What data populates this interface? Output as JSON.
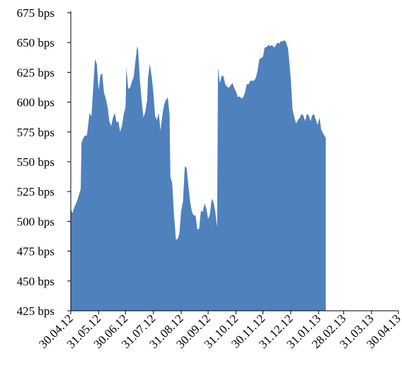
{
  "chart_data": {
    "type": "area",
    "color": "#4F81BD",
    "ylim": [
      425,
      675
    ],
    "yticks": [
      "425 bps",
      "450 bps",
      "475 bps",
      "500 bps",
      "525 bps",
      "550 bps",
      "575 bps",
      "600 bps",
      "625 bps",
      "650 bps",
      "675 bps"
    ],
    "xlim": [
      "2012-04-30",
      "2013-04-30"
    ],
    "xticks": [
      "30.04.12",
      "31.05.12",
      "30.06.12",
      "31.07.12",
      "31.08.12",
      "30.09.12",
      "31.10.12",
      "30.11.12",
      "31.12.12",
      "31.01.13",
      "28.02.13",
      "31.03.13",
      "30.04.13"
    ],
    "xtick_dates": [
      "2012-04-30",
      "2012-05-31",
      "2012-06-30",
      "2012-07-31",
      "2012-08-31",
      "2012-09-30",
      "2012-10-31",
      "2012-11-30",
      "2012-12-31",
      "2013-01-31",
      "2013-02-28",
      "2013-03-31",
      "2013-04-30"
    ],
    "series": [
      {
        "points": [
          [
            "2012-04-30",
            510
          ],
          [
            "2012-05-02",
            507
          ],
          [
            "2012-05-04",
            512
          ],
          [
            "2012-05-07",
            517
          ],
          [
            "2012-05-09",
            522
          ],
          [
            "2012-05-11",
            527
          ],
          [
            "2012-05-12",
            566
          ],
          [
            "2012-05-14",
            570
          ],
          [
            "2012-05-16",
            572
          ],
          [
            "2012-05-18",
            572
          ],
          [
            "2012-05-21",
            591
          ],
          [
            "2012-05-23",
            588
          ],
          [
            "2012-05-25",
            612
          ],
          [
            "2012-05-27",
            636
          ],
          [
            "2012-05-29",
            632
          ],
          [
            "2012-05-31",
            610
          ],
          [
            "2012-06-02",
            623
          ],
          [
            "2012-06-04",
            624
          ],
          [
            "2012-06-06",
            608
          ],
          [
            "2012-06-08",
            603
          ],
          [
            "2012-06-10",
            596
          ],
          [
            "2012-06-12",
            584
          ],
          [
            "2012-06-14",
            580
          ],
          [
            "2012-06-16",
            587
          ],
          [
            "2012-06-18",
            591
          ],
          [
            "2012-06-20",
            583
          ],
          [
            "2012-06-22",
            584
          ],
          [
            "2012-06-24",
            575
          ],
          [
            "2012-06-26",
            580
          ],
          [
            "2012-06-28",
            590
          ],
          [
            "2012-06-30",
            596
          ],
          [
            "2012-07-01",
            629
          ],
          [
            "2012-07-03",
            611
          ],
          [
            "2012-07-05",
            612
          ],
          [
            "2012-07-07",
            617
          ],
          [
            "2012-07-09",
            621
          ],
          [
            "2012-07-11",
            634
          ],
          [
            "2012-07-13",
            647
          ],
          [
            "2012-07-14",
            644
          ],
          [
            "2012-07-16",
            618
          ],
          [
            "2012-07-18",
            601
          ],
          [
            "2012-07-20",
            587
          ],
          [
            "2012-07-22",
            592
          ],
          [
            "2012-07-24",
            601
          ],
          [
            "2012-07-25",
            620
          ],
          [
            "2012-07-27",
            632
          ],
          [
            "2012-07-29",
            622
          ],
          [
            "2012-07-31",
            608
          ],
          [
            "2012-08-02",
            588
          ],
          [
            "2012-08-04",
            585
          ],
          [
            "2012-08-06",
            591
          ],
          [
            "2012-08-08",
            576
          ],
          [
            "2012-08-10",
            589
          ],
          [
            "2012-08-12",
            598
          ],
          [
            "2012-08-14",
            602
          ],
          [
            "2012-08-16",
            604
          ],
          [
            "2012-08-18",
            590
          ],
          [
            "2012-08-19",
            537
          ],
          [
            "2012-08-21",
            532
          ],
          [
            "2012-08-23",
            505
          ],
          [
            "2012-08-24",
            497
          ],
          [
            "2012-08-25",
            485
          ],
          [
            "2012-08-27",
            485
          ],
          [
            "2012-08-29",
            490
          ],
          [
            "2012-08-31",
            509
          ],
          [
            "2012-09-02",
            517
          ],
          [
            "2012-09-04",
            546
          ],
          [
            "2012-09-06",
            545
          ],
          [
            "2012-09-08",
            530
          ],
          [
            "2012-09-10",
            516
          ],
          [
            "2012-09-12",
            508
          ],
          [
            "2012-09-14",
            505
          ],
          [
            "2012-09-16",
            505
          ],
          [
            "2012-09-18",
            493
          ],
          [
            "2012-09-20",
            494
          ],
          [
            "2012-09-22",
            509
          ],
          [
            "2012-09-24",
            508
          ],
          [
            "2012-09-26",
            515
          ],
          [
            "2012-09-28",
            511
          ],
          [
            "2012-09-30",
            502
          ],
          [
            "2012-10-02",
            506
          ],
          [
            "2012-10-04",
            519
          ],
          [
            "2012-10-06",
            516
          ],
          [
            "2012-10-08",
            508
          ],
          [
            "2012-10-10",
            495
          ],
          [
            "2012-10-11",
            629
          ],
          [
            "2012-10-13",
            616
          ],
          [
            "2012-10-15",
            622
          ],
          [
            "2012-10-17",
            622
          ],
          [
            "2012-10-19",
            615
          ],
          [
            "2012-10-21",
            613
          ],
          [
            "2012-10-23",
            612
          ],
          [
            "2012-10-25",
            614
          ],
          [
            "2012-10-27",
            616
          ],
          [
            "2012-10-29",
            612
          ],
          [
            "2012-10-31",
            609
          ],
          [
            "2012-11-02",
            604
          ],
          [
            "2012-11-04",
            605
          ],
          [
            "2012-11-06",
            603
          ],
          [
            "2012-11-08",
            604
          ],
          [
            "2012-11-10",
            608
          ],
          [
            "2012-11-12",
            615
          ],
          [
            "2012-11-14",
            615
          ],
          [
            "2012-11-16",
            618
          ],
          [
            "2012-11-18",
            618
          ],
          [
            "2012-11-20",
            618
          ],
          [
            "2012-11-22",
            620
          ],
          [
            "2012-11-24",
            626
          ],
          [
            "2012-11-26",
            636
          ],
          [
            "2012-11-28",
            637
          ],
          [
            "2012-11-30",
            638
          ],
          [
            "2012-12-02",
            646
          ],
          [
            "2012-12-04",
            646
          ],
          [
            "2012-12-06",
            648
          ],
          [
            "2012-12-08",
            647
          ],
          [
            "2012-12-10",
            648
          ],
          [
            "2012-12-12",
            646
          ],
          [
            "2012-12-14",
            647
          ],
          [
            "2012-12-16",
            650
          ],
          [
            "2012-12-18",
            649
          ],
          [
            "2012-12-20",
            651
          ],
          [
            "2012-12-22",
            651
          ],
          [
            "2012-12-24",
            652
          ],
          [
            "2012-12-26",
            650
          ],
          [
            "2012-12-28",
            645
          ],
          [
            "2012-12-31",
            620
          ],
          [
            "2013-01-02",
            594
          ],
          [
            "2013-01-04",
            587
          ],
          [
            "2013-01-06",
            582
          ],
          [
            "2013-01-08",
            585
          ],
          [
            "2013-01-10",
            587
          ],
          [
            "2013-01-12",
            590
          ],
          [
            "2013-01-14",
            589
          ],
          [
            "2013-01-16",
            584
          ],
          [
            "2013-01-18",
            590
          ],
          [
            "2013-01-20",
            589
          ],
          [
            "2013-01-22",
            584
          ],
          [
            "2013-01-24",
            589
          ],
          [
            "2013-01-26",
            590
          ],
          [
            "2013-01-28",
            585
          ],
          [
            "2013-01-30",
            581
          ],
          [
            "2013-02-01",
            587
          ],
          [
            "2013-02-03",
            577
          ],
          [
            "2013-02-05",
            574
          ],
          [
            "2013-02-08",
            570
          ]
        ]
      }
    ]
  }
}
